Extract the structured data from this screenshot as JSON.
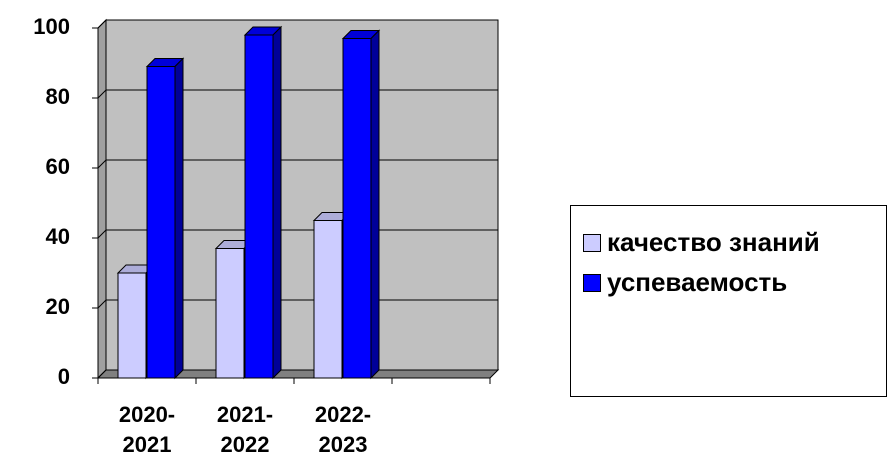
{
  "chart_data": {
    "type": "bar3d",
    "categories": [
      "2020-2021",
      "2021-2022",
      "2022-2023",
      null
    ],
    "series": [
      {
        "name": "качество знаний",
        "color": "#ccccff",
        "values": [
          30,
          37,
          45,
          null
        ]
      },
      {
        "name": "успеваемость",
        "color": "#0000ff",
        "values": [
          89,
          98,
          97,
          null
        ]
      }
    ],
    "ylim": [
      0,
      100
    ],
    "yticks": [
      0,
      20,
      40,
      60,
      80,
      100
    ],
    "grid": true,
    "legend": "right"
  }
}
